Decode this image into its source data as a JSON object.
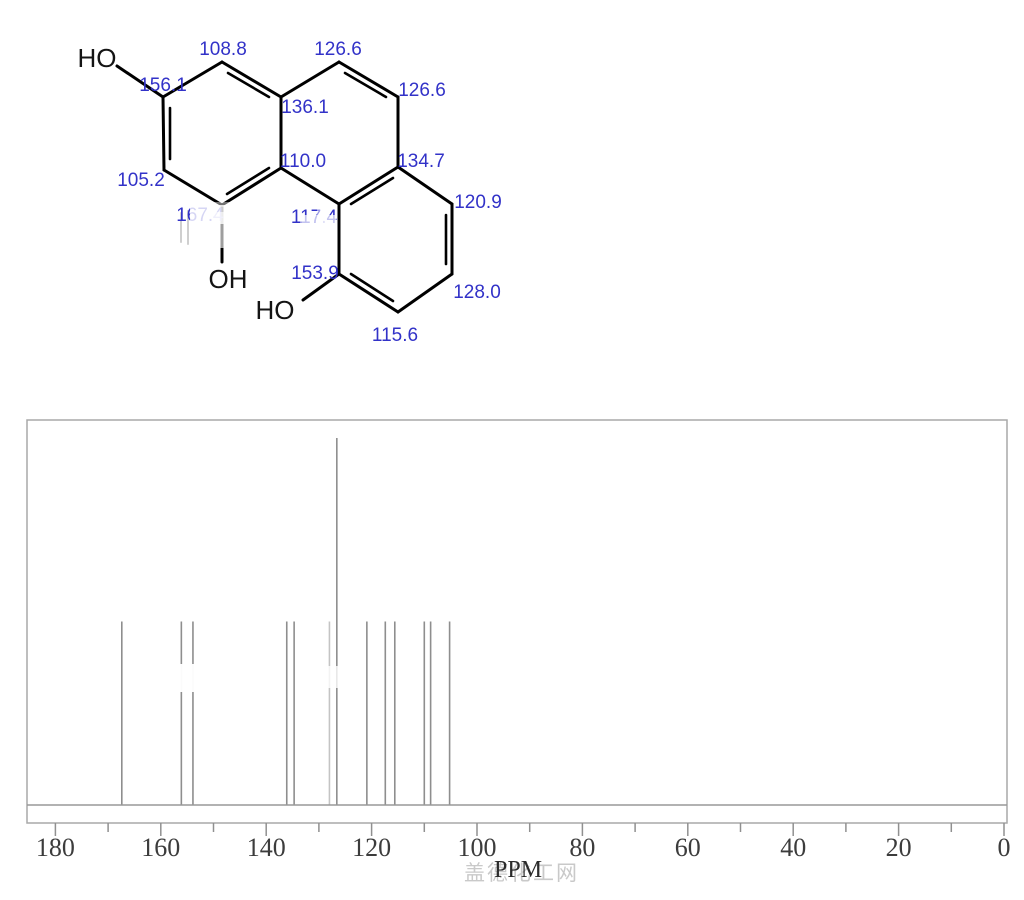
{
  "molecule": {
    "shift_color": "#3232c8",
    "bond_color": "#000000",
    "hydroxyls": [
      {
        "id": "ho-top-left",
        "text": "HO"
      },
      {
        "id": "oh-bottom-middle",
        "text": "OH"
      },
      {
        "id": "ho-bottom",
        "text": "HO"
      }
    ],
    "shifts": [
      {
        "id": "c-108-8",
        "value": "108.8"
      },
      {
        "id": "c-126-6-top",
        "value": "126.6"
      },
      {
        "id": "c-126-6-right",
        "value": "126.6"
      },
      {
        "id": "c-156-1",
        "value": "156.1"
      },
      {
        "id": "c-136-1",
        "value": "136.1"
      },
      {
        "id": "c-110-0",
        "value": "110.0"
      },
      {
        "id": "c-134-7",
        "value": "134.7"
      },
      {
        "id": "c-105-2",
        "value": "105.2"
      },
      {
        "id": "c-167-4",
        "value": "167.4"
      },
      {
        "id": "c-117-4",
        "value": "117.4"
      },
      {
        "id": "c-120-9",
        "value": "120.9"
      },
      {
        "id": "c-128-0",
        "value": "128.0"
      },
      {
        "id": "c-153-9",
        "value": "153.9"
      },
      {
        "id": "c-115-6",
        "value": "115.6"
      }
    ]
  },
  "chart_data": {
    "type": "line",
    "subtype": "13C-NMR stick spectrum",
    "title": "",
    "xlabel": "PPM",
    "ylabel": "",
    "x_axis_reversed": true,
    "xlim": [
      185.5,
      -0.5
    ],
    "grid": false,
    "x_ticks_major": [
      180,
      160,
      140,
      120,
      100,
      80,
      60,
      40,
      20,
      0
    ],
    "x_ticks_minor": [
      170,
      150,
      130,
      110,
      90,
      70,
      50,
      30,
      10
    ],
    "peaks": [
      {
        "ppm": 167.4,
        "rel_height": 0.5
      },
      {
        "ppm": 156.1,
        "rel_height": 0.5
      },
      {
        "ppm": 153.9,
        "rel_height": 0.5
      },
      {
        "ppm": 136.1,
        "rel_height": 0.5
      },
      {
        "ppm": 134.7,
        "rel_height": 0.5
      },
      {
        "ppm": 128.0,
        "rel_height": 0.5,
        "faint": true
      },
      {
        "ppm": 126.6,
        "rel_height": 1.0
      },
      {
        "ppm": 120.9,
        "rel_height": 0.5
      },
      {
        "ppm": 117.4,
        "rel_height": 0.5
      },
      {
        "ppm": 115.6,
        "rel_height": 0.5
      },
      {
        "ppm": 110.0,
        "rel_height": 0.5
      },
      {
        "ppm": 108.8,
        "rel_height": 0.5
      },
      {
        "ppm": 105.2,
        "rel_height": 0.5
      }
    ]
  },
  "axis": {
    "ppm_label": "PPM"
  },
  "watermark": {
    "text": "盖德化工网"
  }
}
